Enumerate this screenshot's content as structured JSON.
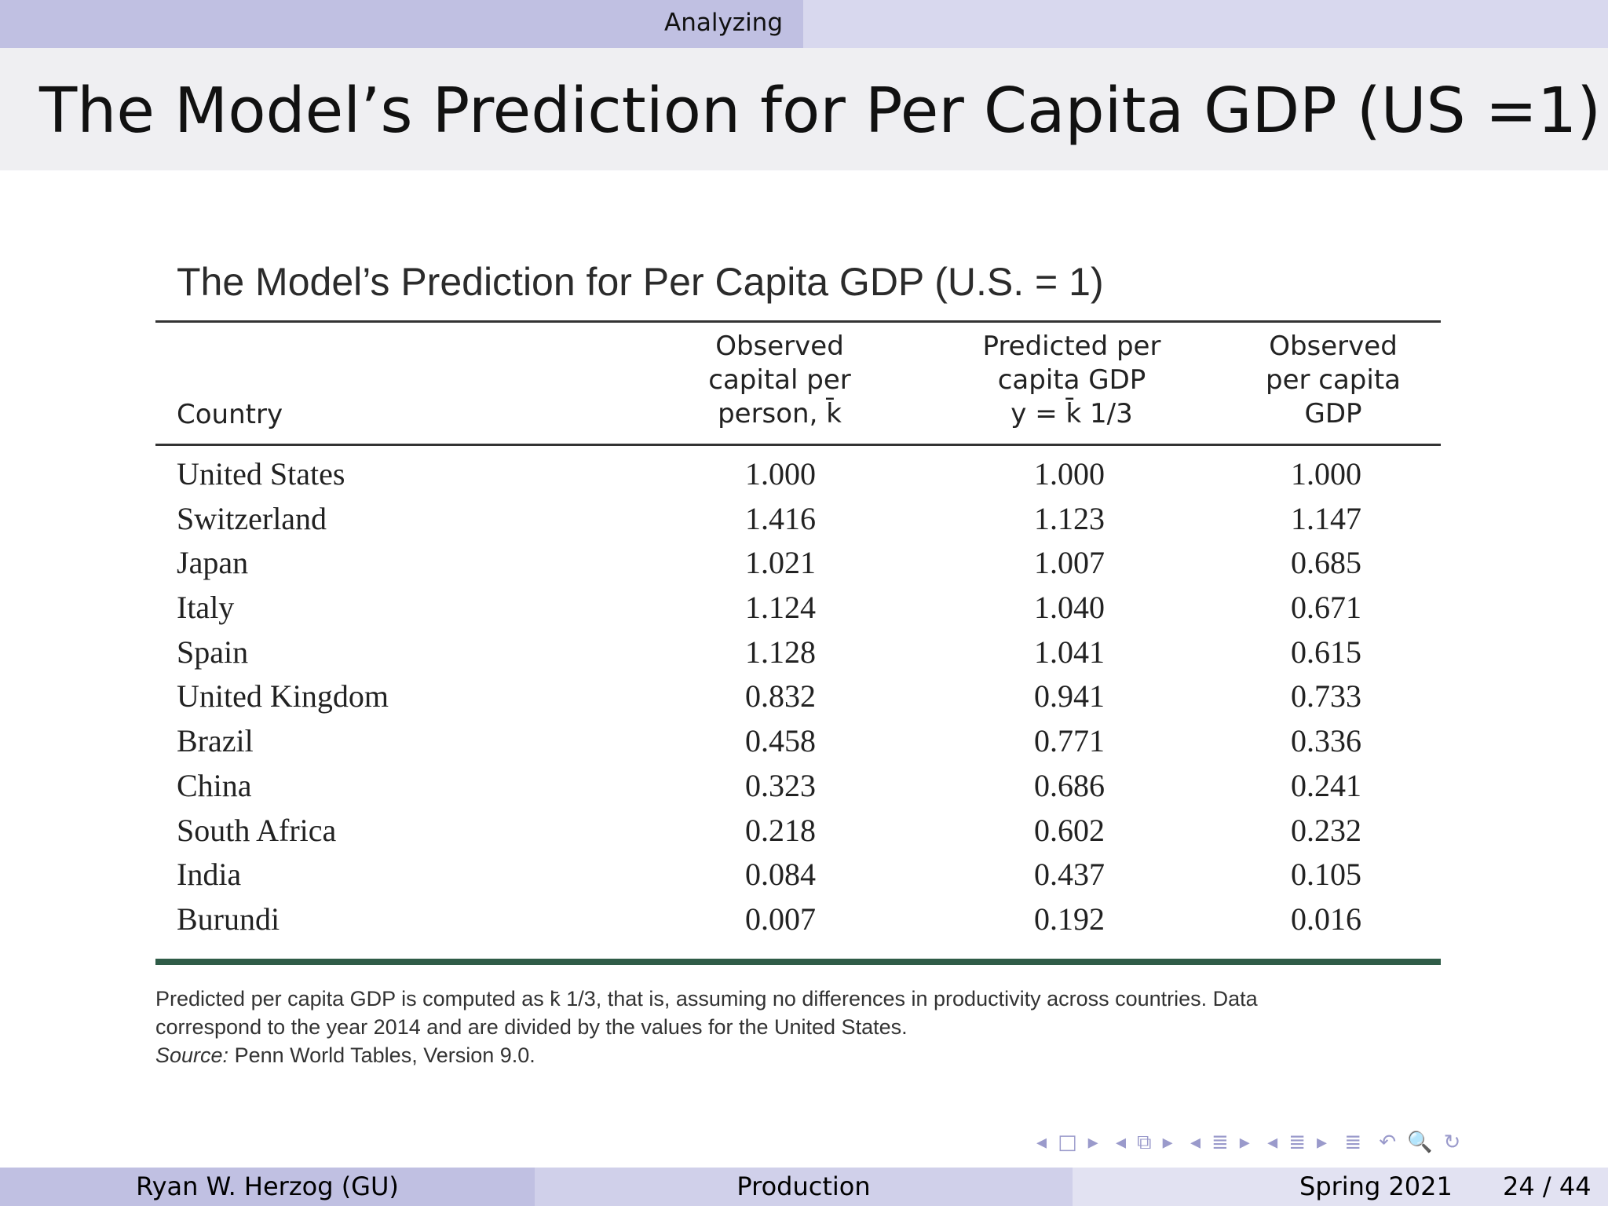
{
  "header": {
    "section": "Analyzing"
  },
  "frame": {
    "title": "The Model’s Prediction for Per Capita GDP (US =1)"
  },
  "table": {
    "title": "The Model’s Prediction for Per Capita GDP (U.S. = 1)",
    "columns": {
      "country": "Country",
      "c1": [
        "Observed",
        "capital per",
        "person, k̄"
      ],
      "c2": [
        "Predicted per",
        "capita GDP",
        "y = k̄ 1/3"
      ],
      "c3": [
        "Observed",
        "per capita",
        "GDP"
      ]
    },
    "rows": [
      {
        "country": "United States",
        "observed_capital": "1.000",
        "predicted_gdp": "1.000",
        "observed_gdp": "1.000"
      },
      {
        "country": "Switzerland",
        "observed_capital": "1.416",
        "predicted_gdp": "1.123",
        "observed_gdp": "1.147"
      },
      {
        "country": "Japan",
        "observed_capital": "1.021",
        "predicted_gdp": "1.007",
        "observed_gdp": "0.685"
      },
      {
        "country": "Italy",
        "observed_capital": "1.124",
        "predicted_gdp": "1.040",
        "observed_gdp": "0.671"
      },
      {
        "country": "Spain",
        "observed_capital": "1.128",
        "predicted_gdp": "1.041",
        "observed_gdp": "0.615"
      },
      {
        "country": "United Kingdom",
        "observed_capital": "0.832",
        "predicted_gdp": "0.941",
        "observed_gdp": "0.733"
      },
      {
        "country": "Brazil",
        "observed_capital": "0.458",
        "predicted_gdp": "0.771",
        "observed_gdp": "0.336"
      },
      {
        "country": "China",
        "observed_capital": "0.323",
        "predicted_gdp": "0.686",
        "observed_gdp": "0.241"
      },
      {
        "country": "South Africa",
        "observed_capital": "0.218",
        "predicted_gdp": "0.602",
        "observed_gdp": "0.232"
      },
      {
        "country": "India",
        "observed_capital": "0.084",
        "predicted_gdp": "0.437",
        "observed_gdp": "0.105"
      },
      {
        "country": "Burundi",
        "observed_capital": "0.007",
        "predicted_gdp": "0.192",
        "observed_gdp": "0.016"
      }
    ],
    "notes": {
      "line1": "Predicted per capita GDP is computed as  k̄ 1/3, that is, assuming no differences in productivity across countries. Data",
      "line2": "correspond to the year 2014 and are divided by the values for the United States.",
      "source_label": "Source:",
      "source_text": " Penn World Tables, Version 9.0."
    }
  },
  "nav": {
    "icons": [
      "◂",
      "□",
      "▸",
      "◂",
      "⧉",
      "▸",
      "◂",
      "≣",
      "▸",
      "◂",
      "≣",
      "▸",
      "≣",
      "↶",
      "🔍",
      "↻"
    ]
  },
  "footer": {
    "author": "Ryan W. Herzog  (GU)",
    "talk": "Production",
    "date": "Spring 2021",
    "page": "24 / 44"
  }
}
